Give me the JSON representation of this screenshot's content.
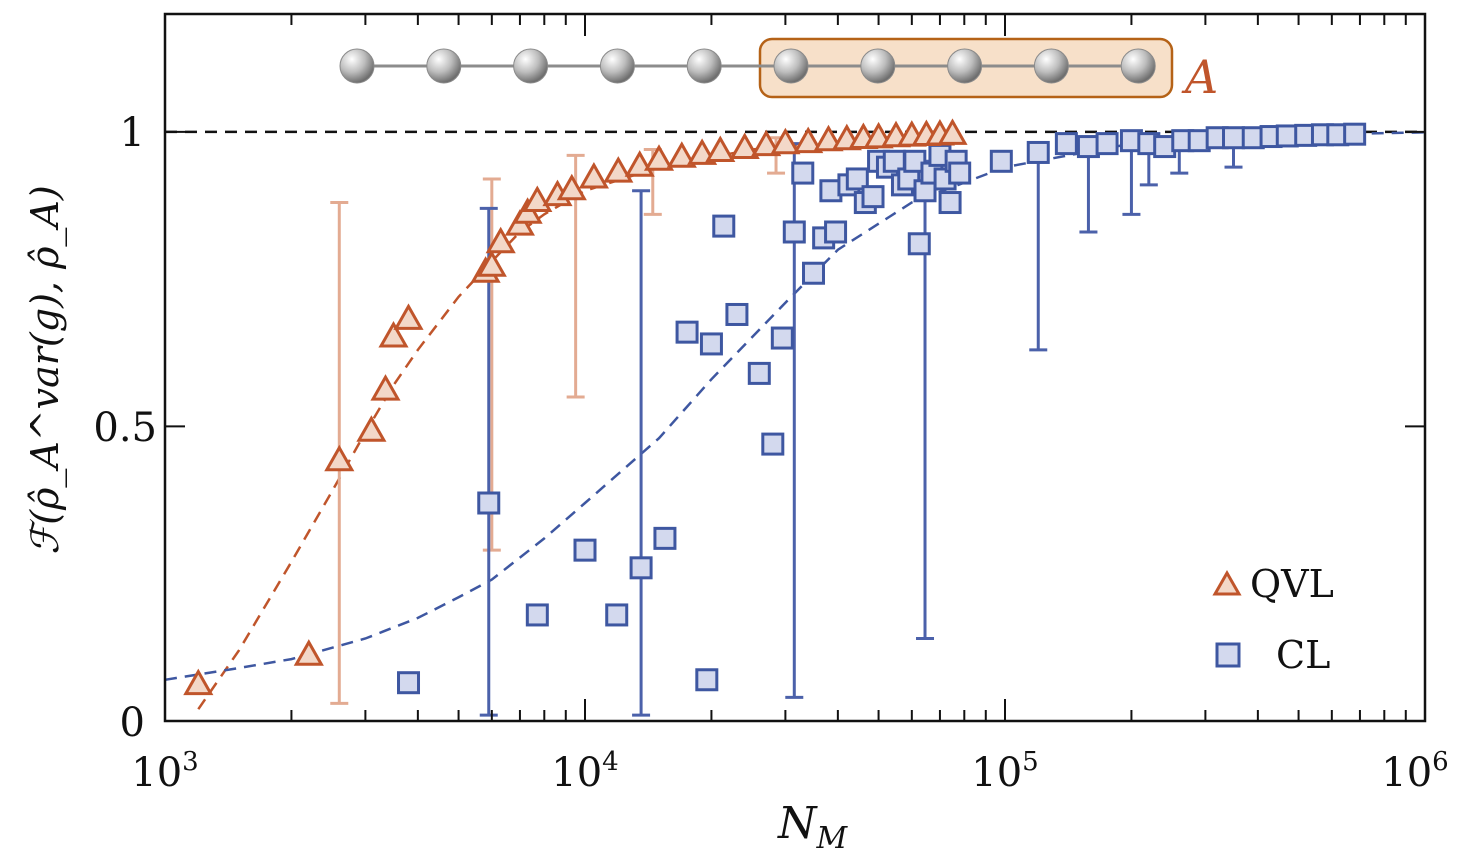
{
  "chart_data": {
    "type": "scatter",
    "xscale": "log",
    "xlim": [
      1000,
      1000000
    ],
    "ylim": [
      0,
      1.2
    ],
    "xlabel": "N",
    "xlabel_sub": "M",
    "ylabel": "ℱ(ρ̂_A^var(g), ρ̂_A)",
    "x_ticks": [
      {
        "value": 1000,
        "base": "10",
        "exp": "3"
      },
      {
        "value": 10000,
        "base": "10",
        "exp": "4"
      },
      {
        "value": 100000,
        "base": "10",
        "exp": "5"
      },
      {
        "value": 1000000,
        "base": "10",
        "exp": "6"
      }
    ],
    "y_ticks": [
      {
        "value": 0,
        "label": "0"
      },
      {
        "value": 0.5,
        "label": "0.5"
      },
      {
        "value": 1,
        "label": "1"
      }
    ],
    "reference_line": {
      "y": 1,
      "style": "dashed",
      "color": "#111111"
    },
    "subsystem_label": "A",
    "inset_chain": {
      "total_spins": 10,
      "subsystem_spins": 5
    },
    "legend": {
      "position": "bottom-right",
      "entries": [
        "QVL",
        "CL"
      ]
    },
    "series": [
      {
        "name": "QVL",
        "marker": "triangle",
        "color": "#c0552b",
        "fill": "#f3d8c8",
        "errorbar_color": "#e3ab92",
        "points": [
          [
            1200,
            0.06
          ],
          [
            2200,
            0.11
          ],
          [
            2600,
            0.44
          ],
          [
            3100,
            0.49
          ],
          [
            3350,
            0.56
          ],
          [
            3500,
            0.65
          ],
          [
            3800,
            0.68
          ],
          [
            5800,
            0.76
          ],
          [
            6000,
            0.77
          ],
          [
            6300,
            0.81
          ],
          [
            7000,
            0.84
          ],
          [
            7300,
            0.86
          ],
          [
            7700,
            0.88
          ],
          [
            8600,
            0.89
          ],
          [
            9300,
            0.9
          ],
          [
            10500,
            0.92
          ],
          [
            12000,
            0.93
          ],
          [
            13500,
            0.94
          ],
          [
            15000,
            0.95
          ],
          [
            17000,
            0.955
          ],
          [
            19000,
            0.96
          ],
          [
            21000,
            0.965
          ],
          [
            24000,
            0.97
          ],
          [
            27000,
            0.975
          ],
          [
            30000,
            0.978
          ],
          [
            34000,
            0.98
          ],
          [
            38000,
            0.983
          ],
          [
            42000,
            0.985
          ],
          [
            46000,
            0.987
          ],
          [
            50000,
            0.988
          ],
          [
            55000,
            0.99
          ],
          [
            60000,
            0.991
          ],
          [
            65000,
            0.992
          ],
          [
            70000,
            0.993
          ],
          [
            75000,
            0.994
          ]
        ],
        "errorbars": [
          {
            "x": 2600,
            "low": 0.03,
            "high": 0.88
          },
          {
            "x": 6000,
            "low": 0.29,
            "high": 0.92
          },
          {
            "x": 9500,
            "low": 0.55,
            "high": 0.96
          },
          {
            "x": 14500,
            "low": 0.86,
            "high": 0.97
          },
          {
            "x": 28500,
            "low": 0.93,
            "high": 0.99
          }
        ],
        "fit": [
          [
            1200,
            0.02
          ],
          [
            1500,
            0.12
          ],
          [
            2000,
            0.27
          ],
          [
            2500,
            0.39
          ],
          [
            3000,
            0.49
          ],
          [
            3500,
            0.57
          ],
          [
            4000,
            0.63
          ],
          [
            5000,
            0.72
          ],
          [
            6000,
            0.78
          ],
          [
            7000,
            0.83
          ],
          [
            8000,
            0.86
          ],
          [
            10000,
            0.9
          ],
          [
            15000,
            0.94
          ],
          [
            25000,
            0.97
          ],
          [
            50000,
            0.99
          ],
          [
            80000,
            0.995
          ]
        ]
      },
      {
        "name": "CL",
        "marker": "square",
        "color": "#3e57a1",
        "fill": "#d3d9ee",
        "errorbar_color": "#4b61aa",
        "points": [
          [
            3800,
            0.065
          ],
          [
            5900,
            0.37
          ],
          [
            7700,
            0.18
          ],
          [
            10000,
            0.29
          ],
          [
            11900,
            0.18
          ],
          [
            13600,
            0.26
          ],
          [
            15500,
            0.31
          ],
          [
            17500,
            0.66
          ],
          [
            19500,
            0.07
          ],
          [
            20000,
            0.64
          ],
          [
            21400,
            0.84
          ],
          [
            23000,
            0.69
          ],
          [
            26000,
            0.59
          ],
          [
            28000,
            0.47
          ],
          [
            29500,
            0.65
          ],
          [
            31500,
            0.83
          ],
          [
            33000,
            0.93
          ],
          [
            35000,
            0.76
          ],
          [
            37000,
            0.82
          ],
          [
            38500,
            0.9
          ],
          [
            39500,
            0.83
          ],
          [
            42500,
            0.91
          ],
          [
            44500,
            0.92
          ],
          [
            46500,
            0.88
          ],
          [
            48500,
            0.89
          ],
          [
            50000,
            0.95
          ],
          [
            52500,
            0.94
          ],
          [
            54500,
            0.95
          ],
          [
            57000,
            0.91
          ],
          [
            59000,
            0.92
          ],
          [
            61000,
            0.95
          ],
          [
            62500,
            0.81
          ],
          [
            64500,
            0.9
          ],
          [
            67000,
            0.93
          ],
          [
            70000,
            0.96
          ],
          [
            72000,
            0.92
          ],
          [
            74000,
            0.88
          ],
          [
            76500,
            0.95
          ],
          [
            78000,
            0.93
          ],
          [
            98000,
            0.95
          ],
          [
            120000,
            0.965
          ],
          [
            140000,
            0.98
          ],
          [
            158000,
            0.975
          ],
          [
            175000,
            0.98
          ],
          [
            200000,
            0.985
          ],
          [
            220000,
            0.98
          ],
          [
            240000,
            0.975
          ],
          [
            265000,
            0.985
          ],
          [
            290000,
            0.985
          ],
          [
            320000,
            0.99
          ],
          [
            350000,
            0.99
          ],
          [
            390000,
            0.99
          ],
          [
            430000,
            0.992
          ],
          [
            470000,
            0.993
          ],
          [
            520000,
            0.994
          ],
          [
            570000,
            0.995
          ],
          [
            620000,
            0.995
          ],
          [
            680000,
            0.996
          ]
        ],
        "errorbars": [
          {
            "x": 5900,
            "low": 0.01,
            "high": 0.87
          },
          {
            "x": 13600,
            "low": 0.01,
            "high": 0.9
          },
          {
            "x": 31500,
            "low": 0.04,
            "high": 0.98
          },
          {
            "x": 64500,
            "low": 0.14,
            "high": 0.95
          },
          {
            "x": 120000,
            "low": 0.63,
            "high": 0.98
          },
          {
            "x": 158000,
            "low": 0.83,
            "high": 0.985
          },
          {
            "x": 200000,
            "low": 0.86,
            "high": 0.99
          },
          {
            "x": 220000,
            "low": 0.91,
            "high": 0.99
          },
          {
            "x": 260000,
            "low": 0.93,
            "high": 0.99
          },
          {
            "x": 350000,
            "low": 0.94,
            "high": 0.995
          }
        ],
        "fit": [
          [
            1000,
            0.07
          ],
          [
            1500,
            0.09
          ],
          [
            2000,
            0.105
          ],
          [
            3000,
            0.14
          ],
          [
            4000,
            0.175
          ],
          [
            5000,
            0.21
          ],
          [
            6000,
            0.24
          ],
          [
            8000,
            0.31
          ],
          [
            10000,
            0.37
          ],
          [
            15000,
            0.48
          ],
          [
            20000,
            0.58
          ],
          [
            30000,
            0.71
          ],
          [
            40000,
            0.8
          ],
          [
            60000,
            0.88
          ],
          [
            100000,
            0.94
          ],
          [
            200000,
            0.98
          ],
          [
            500000,
            0.995
          ],
          [
            1000000,
            0.999
          ]
        ]
      }
    ]
  }
}
